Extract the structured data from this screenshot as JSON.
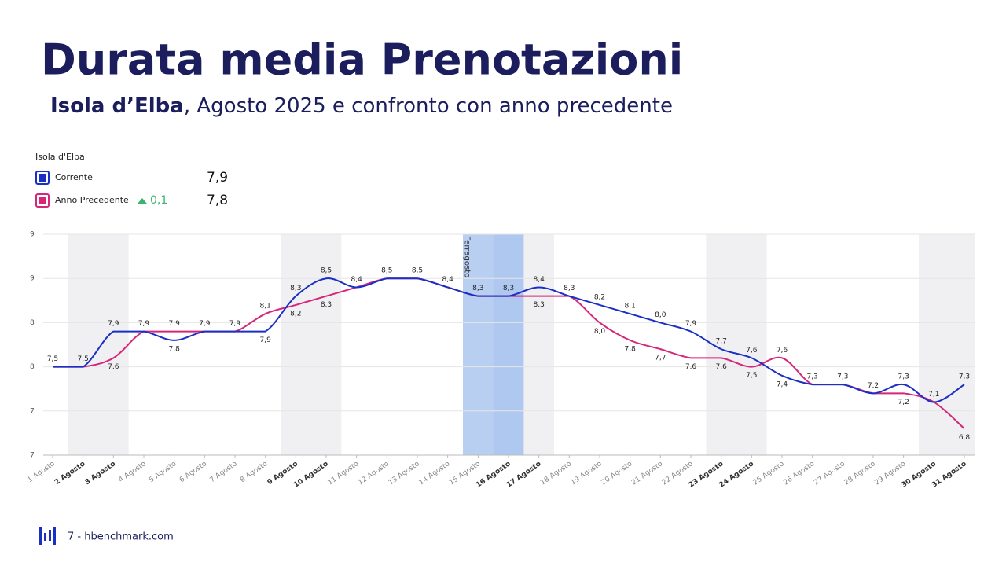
{
  "chart_data": {
    "type": "line",
    "title": "Durata media Prenotazioni",
    "subtitle_bold": "Isola d’Elba",
    "subtitle": ", Agosto 2025 e confronto con anno precedente",
    "legend_title": "Isola d'Elba",
    "delta": 0.1,
    "delta_label": "0,1",
    "annotation": "Ferragosto",
    "footer": "7 - hbenchmark.com",
    "categories": [
      "1 Agosto",
      "2 Agosto",
      "3 Agosto",
      "4 Agosto",
      "5 Agosto",
      "6 Agosto",
      "7 Agosto",
      "8 Agosto",
      "9 Agosto",
      "10 Agosto",
      "11 Agosto",
      "12 Agosto",
      "13 Agosto",
      "14 Agosto",
      "15 Agosto",
      "16 Agosto",
      "17 Agosto",
      "18 Agosto",
      "19 Agosto",
      "20 Agosto",
      "21 Agosto",
      "22 Agosto",
      "23 Agosto",
      "24 Agosto",
      "25 Agosto",
      "26 Agosto",
      "27 Agosto",
      "28 Agosto",
      "29 Agosto",
      "30 Agosto",
      "31 Agosto"
    ],
    "series": [
      {
        "name": "Corrente",
        "color": "#1a2fc4",
        "total": 7.9,
        "total_label": "7,9",
        "values": [
          7.5,
          7.5,
          7.9,
          7.9,
          7.8,
          7.9,
          7.9,
          7.9,
          8.3,
          8.5,
          8.4,
          8.5,
          8.5,
          8.4,
          8.3,
          8.3,
          8.4,
          8.3,
          8.2,
          8.1,
          8.0,
          7.9,
          7.7,
          7.6,
          7.4,
          7.3,
          7.3,
          7.2,
          7.3,
          7.1,
          7.3
        ],
        "value_labels": [
          "7,5",
          "7,5",
          "7,9",
          "7,9",
          "7,8",
          "7,9",
          "7,9",
          "7,9",
          "8,3",
          "8,5",
          "8,4",
          "8,5",
          "8,5",
          "8,4",
          "8,3",
          "8,3",
          "8,4",
          "8,3",
          "8,2",
          "8,1",
          "8,0",
          "7,9",
          "7,7",
          "7,6",
          "7,4",
          "7,3",
          "7,3",
          "7,2",
          "7,3",
          "7,1",
          "7,3"
        ]
      },
      {
        "name": "Anno Precedente",
        "color": "#d6267a",
        "total": 7.8,
        "total_label": "7,8",
        "values": [
          7.5,
          7.5,
          7.6,
          7.9,
          7.9,
          7.9,
          7.9,
          8.1,
          8.2,
          8.3,
          8.4,
          8.5,
          8.5,
          8.4,
          8.3,
          8.3,
          8.3,
          8.3,
          8.0,
          7.8,
          7.7,
          7.6,
          7.6,
          7.5,
          7.6,
          7.3,
          7.3,
          7.2,
          7.2,
          7.1,
          6.8
        ],
        "value_labels": [
          "7,5",
          "7,5",
          "7,6",
          "7,9",
          "7,9",
          "7,9",
          "7,9",
          "8,1",
          "8,2",
          "8,3",
          "8,4",
          "8,5",
          "8,5",
          "8,4",
          "8,3",
          "8,3",
          "8,3",
          "8,3",
          "8,0",
          "7,8",
          "7,7",
          "7,6",
          "7,6",
          "7,5",
          "7,6",
          "7,3",
          "7,3",
          "7,2",
          "7,2",
          "7,1",
          "6,8"
        ]
      }
    ],
    "ylim": [
      6.5,
      9
    ],
    "yticks": [
      {
        "value": 6.5,
        "label": "7"
      },
      7,
      {
        "value": 7.5,
        "label": "8"
      },
      8,
      {
        "value": 8.5,
        "label": "9"
      },
      9
    ],
    "grid": true
  }
}
